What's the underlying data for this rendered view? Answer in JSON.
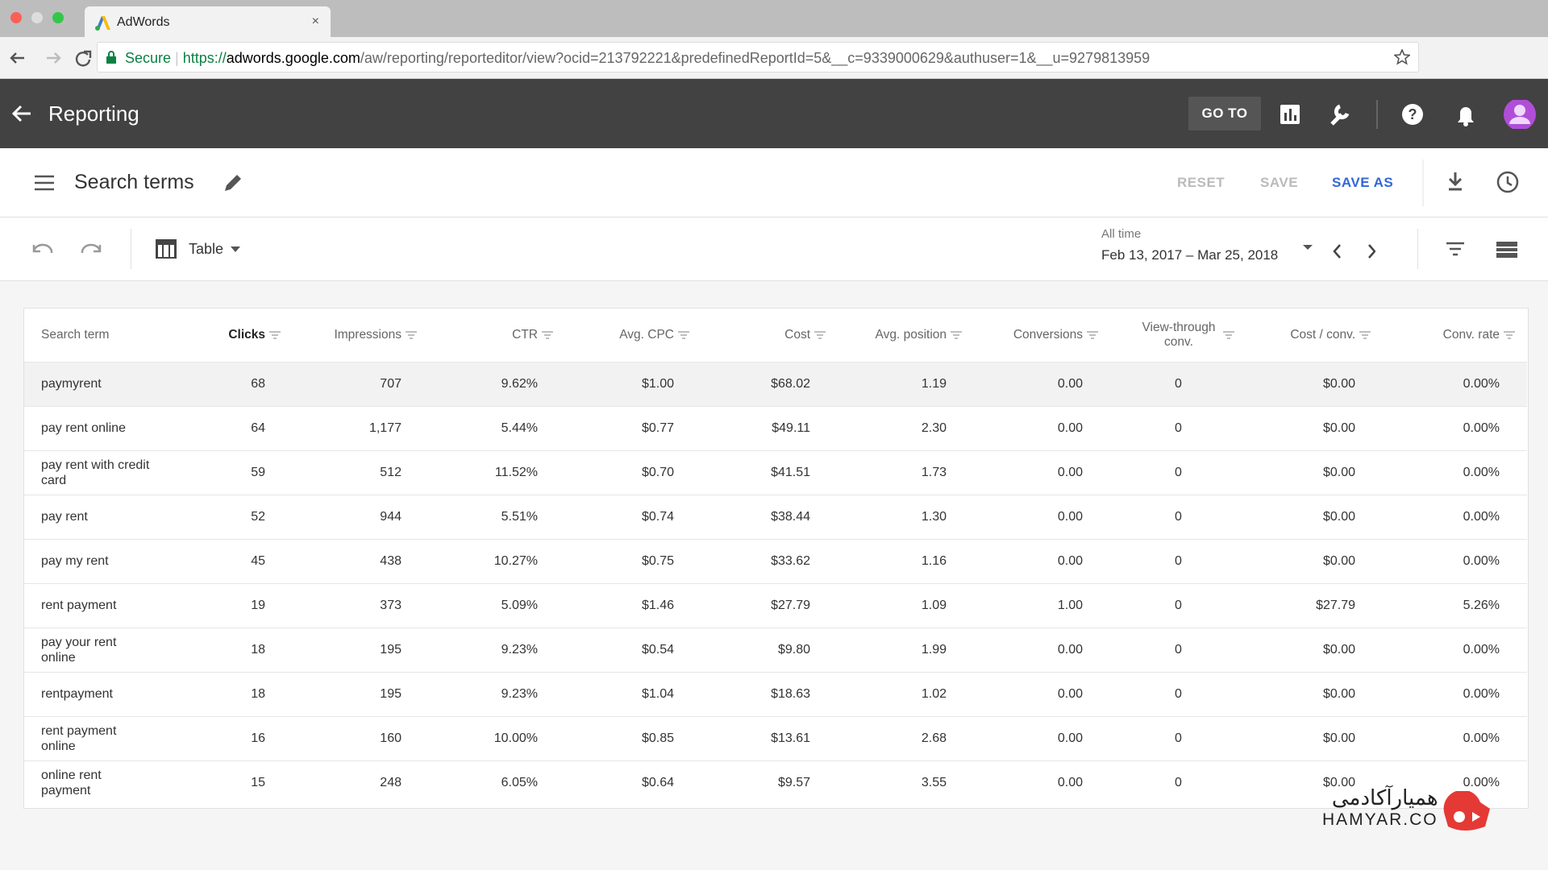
{
  "browser": {
    "tab_title": "AdWords",
    "secure": "Secure",
    "url_scheme": "https://",
    "url_host": "adwords.google.com",
    "url_path": "/aw/reporting/reporteditor/view?ocid=213792221&predefinedReportId=5&__c=9339000629&authuser=1&__u=9279813959"
  },
  "header": {
    "title": "Reporting",
    "goto": "GO TO"
  },
  "report": {
    "title": "Search terms",
    "reset": "RESET",
    "save": "SAVE",
    "save_as": "SAVE AS",
    "view": "Table",
    "range_label": "All time",
    "range": "Feb 13, 2017 – Mar 25, 2018"
  },
  "table": {
    "columns": [
      "Search term",
      "Clicks",
      "Impressions",
      "CTR",
      "Avg. CPC",
      "Cost",
      "Avg. position",
      "Conversions",
      "View-through conv.",
      "Cost / conv.",
      "Conv. rate"
    ],
    "rows": [
      [
        "paymyrent",
        "68",
        "707",
        "9.62%",
        "$1.00",
        "$68.02",
        "1.19",
        "0.00",
        "0",
        "$0.00",
        "0.00%"
      ],
      [
        "pay rent online",
        "64",
        "1,177",
        "5.44%",
        "$0.77",
        "$49.11",
        "2.30",
        "0.00",
        "0",
        "$0.00",
        "0.00%"
      ],
      [
        "pay rent with credit card",
        "59",
        "512",
        "11.52%",
        "$0.70",
        "$41.51",
        "1.73",
        "0.00",
        "0",
        "$0.00",
        "0.00%"
      ],
      [
        "pay rent",
        "52",
        "944",
        "5.51%",
        "$0.74",
        "$38.44",
        "1.30",
        "0.00",
        "0",
        "$0.00",
        "0.00%"
      ],
      [
        "pay my rent",
        "45",
        "438",
        "10.27%",
        "$0.75",
        "$33.62",
        "1.16",
        "0.00",
        "0",
        "$0.00",
        "0.00%"
      ],
      [
        "rent payment",
        "19",
        "373",
        "5.09%",
        "$1.46",
        "$27.79",
        "1.09",
        "1.00",
        "0",
        "$27.79",
        "5.26%"
      ],
      [
        "pay your rent online",
        "18",
        "195",
        "9.23%",
        "$0.54",
        "$9.80",
        "1.99",
        "0.00",
        "0",
        "$0.00",
        "0.00%"
      ],
      [
        "rentpayment",
        "18",
        "195",
        "9.23%",
        "$1.04",
        "$18.63",
        "1.02",
        "0.00",
        "0",
        "$0.00",
        "0.00%"
      ],
      [
        "rent payment online",
        "16",
        "160",
        "10.00%",
        "$0.85",
        "$13.61",
        "2.68",
        "0.00",
        "0",
        "$0.00",
        "0.00%"
      ],
      [
        "online rent payment",
        "15",
        "248",
        "6.05%",
        "$0.64",
        "$9.57",
        "3.55",
        "0.00",
        "0",
        "$0.00",
        "0.00%"
      ]
    ]
  },
  "watermark": {
    "name": "همیارآکادمی",
    "site": "HAMYAR.CO"
  }
}
